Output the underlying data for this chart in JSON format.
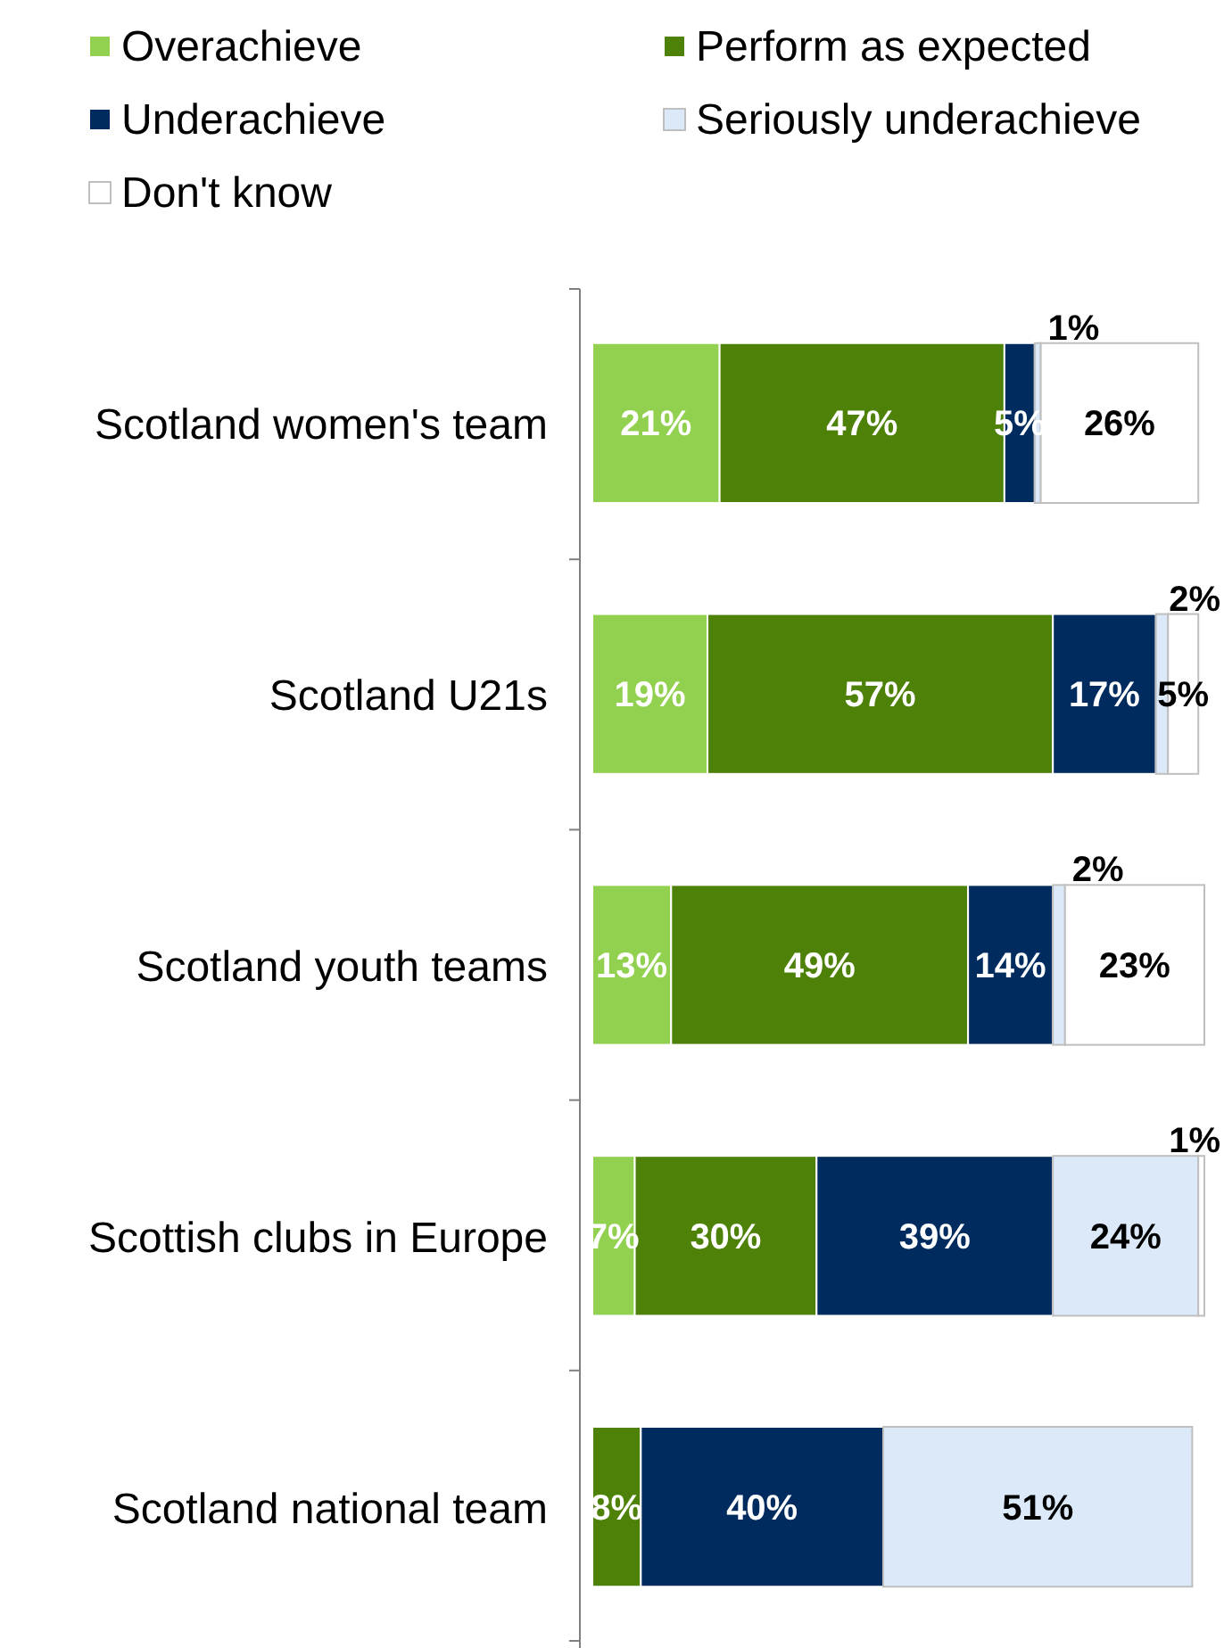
{
  "chart_data": {
    "type": "bar",
    "orientation": "horizontal",
    "stacked": true,
    "legend": "top",
    "tick_labels": "y",
    "xlim": [
      0,
      101
    ],
    "categories": [
      "Scotland women's team",
      "Scotland U21s",
      "Scotland youth teams",
      "Scottish clubs in Europe",
      "Scotland national team"
    ],
    "series": [
      {
        "name": "Overachieve",
        "color": "#92d050",
        "values": [
          21,
          19,
          13,
          7,
          null
        ],
        "value_labels": [
          "21%",
          "19%",
          "13%",
          "7%",
          null
        ]
      },
      {
        "name": "Perform as expected",
        "color": "#4e8107",
        "values": [
          47,
          57,
          49,
          30,
          8
        ],
        "value_labels": [
          "47%",
          "57%",
          "49%",
          "30%",
          "8%"
        ]
      },
      {
        "name": "Underachieve",
        "color": "#002b5e",
        "values": [
          5,
          17,
          14,
          39,
          40
        ],
        "value_labels": [
          "5%",
          "17%",
          "14%",
          "39%",
          "40%"
        ]
      },
      {
        "name": "Seriously underachieve",
        "color": "#dce9f8",
        "values": [
          1,
          2,
          2,
          24,
          51
        ],
        "value_labels": [
          "1%",
          "2%",
          "2%",
          "24%",
          "51%"
        ]
      },
      {
        "name": "Don't know",
        "color": "#ffffff",
        "values": [
          26,
          5,
          23,
          1,
          null
        ],
        "value_labels": [
          "26%",
          "5%",
          "23%",
          "1%",
          null
        ]
      }
    ]
  }
}
